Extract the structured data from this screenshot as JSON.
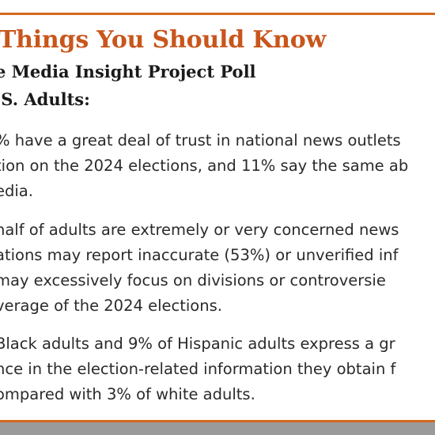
{
  "heading": {
    "title": "Things You Should Know",
    "subtitle_lines": [
      "e Media Insight Project Poll",
      ".S. Adults:"
    ]
  },
  "findings": [
    {
      "lines": [
        "% have a great deal of trust in national news outlets",
        "tion on the 2024 elections, and 11% say the same ab",
        "edia."
      ]
    },
    {
      "lines": [
        "half of adults are extremely or very concerned news",
        "ations may report inaccurate (53%) or unverified inf",
        " may excessively focus on divisions or controversie",
        "verage of the 2024 elections."
      ]
    },
    {
      "lines": [
        "Black adults and 9% of Hispanic adults express a gr",
        "nce in the election-related information they obtain f",
        "ompared with 3% of white adults."
      ]
    }
  ],
  "colors": {
    "accent": "#c8561c",
    "rule": "#d2691e",
    "footer_band": "#9a9a9a",
    "text": "#2a2a2a"
  }
}
